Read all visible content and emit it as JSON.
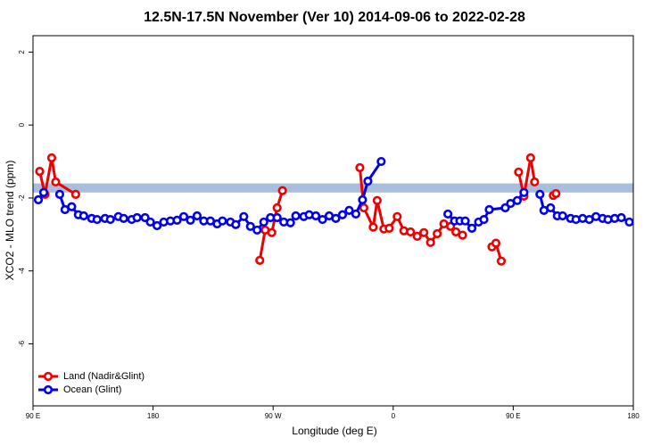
{
  "chart_data": {
    "type": "line",
    "title": "12.5N-17.5N November (Ver 10)   2014-09-06 to 2022-02-28",
    "x_label": "Longitude (deg E)",
    "y_label": "XCO2 - MLO trend (ppm)",
    "xlim": [
      90,
      540
    ],
    "ylim": [
      -7.7,
      2.45
    ],
    "xticks": [
      {
        "value": 90,
        "label": "90 E"
      },
      180,
      {
        "value": 270,
        "label": "90 W"
      },
      {
        "value": 360,
        "label": "0"
      },
      {
        "value": 450,
        "label": "90 E"
      },
      {
        "value": 540,
        "label": "180"
      }
    ],
    "yticks": [
      2,
      0,
      -2,
      -4,
      -6
    ],
    "band": {
      "range": [
        -1.85,
        -1.6
      ],
      "color": "#a8bedc"
    },
    "legend": "bottom-left",
    "series": [
      {
        "name": "Land (Nadir&Glint)",
        "color": "#ee0000",
        "x": [
          95,
          99,
          104,
          107,
          122,
          null,
          260,
          264,
          269,
          273,
          277,
          null,
          335,
          338,
          345,
          348,
          353,
          357,
          363,
          368,
          373,
          378,
          383,
          388,
          393,
          398,
          403,
          407,
          412,
          null,
          434,
          437,
          441,
          null,
          454,
          458,
          463,
          466,
          null,
          480,
          482
        ],
        "values": [
          -1.27,
          -1.9,
          -0.9,
          -1.56,
          -1.9,
          null,
          -3.71,
          -2.88,
          -2.95,
          -2.27,
          -1.8,
          null,
          -1.17,
          -2.27,
          -2.8,
          -2.07,
          -2.85,
          -2.83,
          -2.51,
          -2.9,
          -2.93,
          -3.05,
          -2.95,
          -3.22,
          -2.98,
          -2.71,
          -2.78,
          -2.93,
          -3.02,
          null,
          -3.34,
          -3.24,
          -3.73,
          null,
          -1.29,
          -1.95,
          -0.9,
          -1.56,
          null,
          -1.93,
          -1.88
        ]
      },
      {
        "name": "Ocean (Glint)",
        "color": "#0000ee",
        "x": [
          94,
          98,
          null,
          110,
          114,
          119,
          124,
          128,
          134,
          138,
          144,
          148,
          154,
          158,
          164,
          168,
          174,
          178,
          183,
          188,
          193,
          198,
          203,
          208,
          213,
          218,
          223,
          228,
          232,
          238,
          242,
          248,
          253,
          258,
          263,
          268,
          273,
          278,
          283,
          287,
          293,
          297,
          302,
          307,
          312,
          317,
          322,
          327,
          332,
          337,
          341,
          351,
          null,
          401,
          406,
          410,
          414,
          419,
          424,
          428,
          432,
          444,
          448,
          453,
          458,
          null,
          470,
          473,
          478,
          483,
          487,
          493,
          497,
          502,
          507,
          512,
          517,
          521,
          526,
          531,
          537
        ],
        "values": [
          -2.05,
          -1.85,
          null,
          -1.9,
          -2.32,
          -2.24,
          -2.46,
          -2.49,
          -2.56,
          -2.59,
          -2.56,
          -2.59,
          -2.51,
          -2.56,
          -2.59,
          -2.54,
          -2.54,
          -2.66,
          -2.76,
          -2.66,
          -2.63,
          -2.61,
          -2.51,
          -2.61,
          -2.49,
          -2.63,
          -2.63,
          -2.71,
          -2.63,
          -2.66,
          -2.73,
          -2.51,
          -2.78,
          -2.88,
          -2.66,
          -2.54,
          -2.54,
          -2.66,
          -2.68,
          -2.49,
          -2.51,
          -2.46,
          -2.49,
          -2.59,
          -2.49,
          -2.56,
          -2.46,
          -2.34,
          -2.44,
          -2.05,
          -1.54,
          -1.0,
          null,
          -2.44,
          -2.63,
          -2.63,
          -2.63,
          -2.83,
          -2.66,
          -2.59,
          -2.32,
          -2.27,
          -2.15,
          -2.07,
          -1.85,
          null,
          -1.9,
          -2.34,
          -2.27,
          -2.49,
          -2.49,
          -2.56,
          -2.59,
          -2.56,
          -2.59,
          -2.51,
          -2.56,
          -2.59,
          -2.56,
          -2.54,
          -2.66
        ]
      }
    ]
  }
}
